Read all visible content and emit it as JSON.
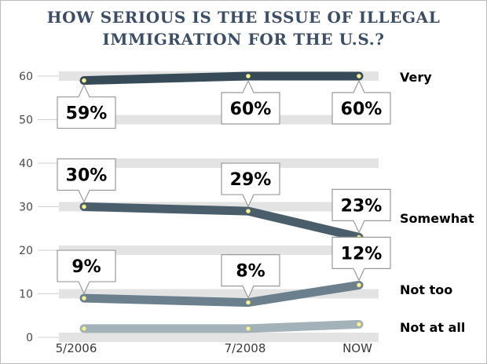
{
  "title": {
    "line1": "HOW SERIOUS IS THE ISSUE OF ILLEGAL",
    "line2": "IMMIGRATION FOR THE U.S.?"
  },
  "chart_data": {
    "type": "line",
    "title": "HOW SERIOUS IS THE ISSUE OF ILLEGAL IMMIGRATION FOR THE U.S.?",
    "xlabel": "",
    "ylabel": "",
    "categories": [
      "5/2006",
      "7/2008",
      "NOW"
    ],
    "ylim": [
      0,
      60
    ],
    "yticks": [
      0,
      10,
      20,
      30,
      40,
      50,
      60
    ],
    "grid": "horizontal bands",
    "series": [
      {
        "name": "Very",
        "values": [
          59,
          60,
          60
        ],
        "labels": [
          "59%",
          "60%",
          "60%"
        ],
        "color": "#364a57"
      },
      {
        "name": "Somewhat",
        "values": [
          30,
          29,
          23
        ],
        "labels": [
          "30%",
          "29%",
          "23%"
        ],
        "color": "#4a5d6a"
      },
      {
        "name": "Not too",
        "values": [
          9,
          8,
          12
        ],
        "labels": [
          "9%",
          "8%",
          "12%"
        ],
        "color": "#6b7f8c"
      },
      {
        "name": "Not at all",
        "values": [
          2,
          2,
          3
        ],
        "labels": [],
        "color": "#a3b2b8"
      }
    ]
  }
}
